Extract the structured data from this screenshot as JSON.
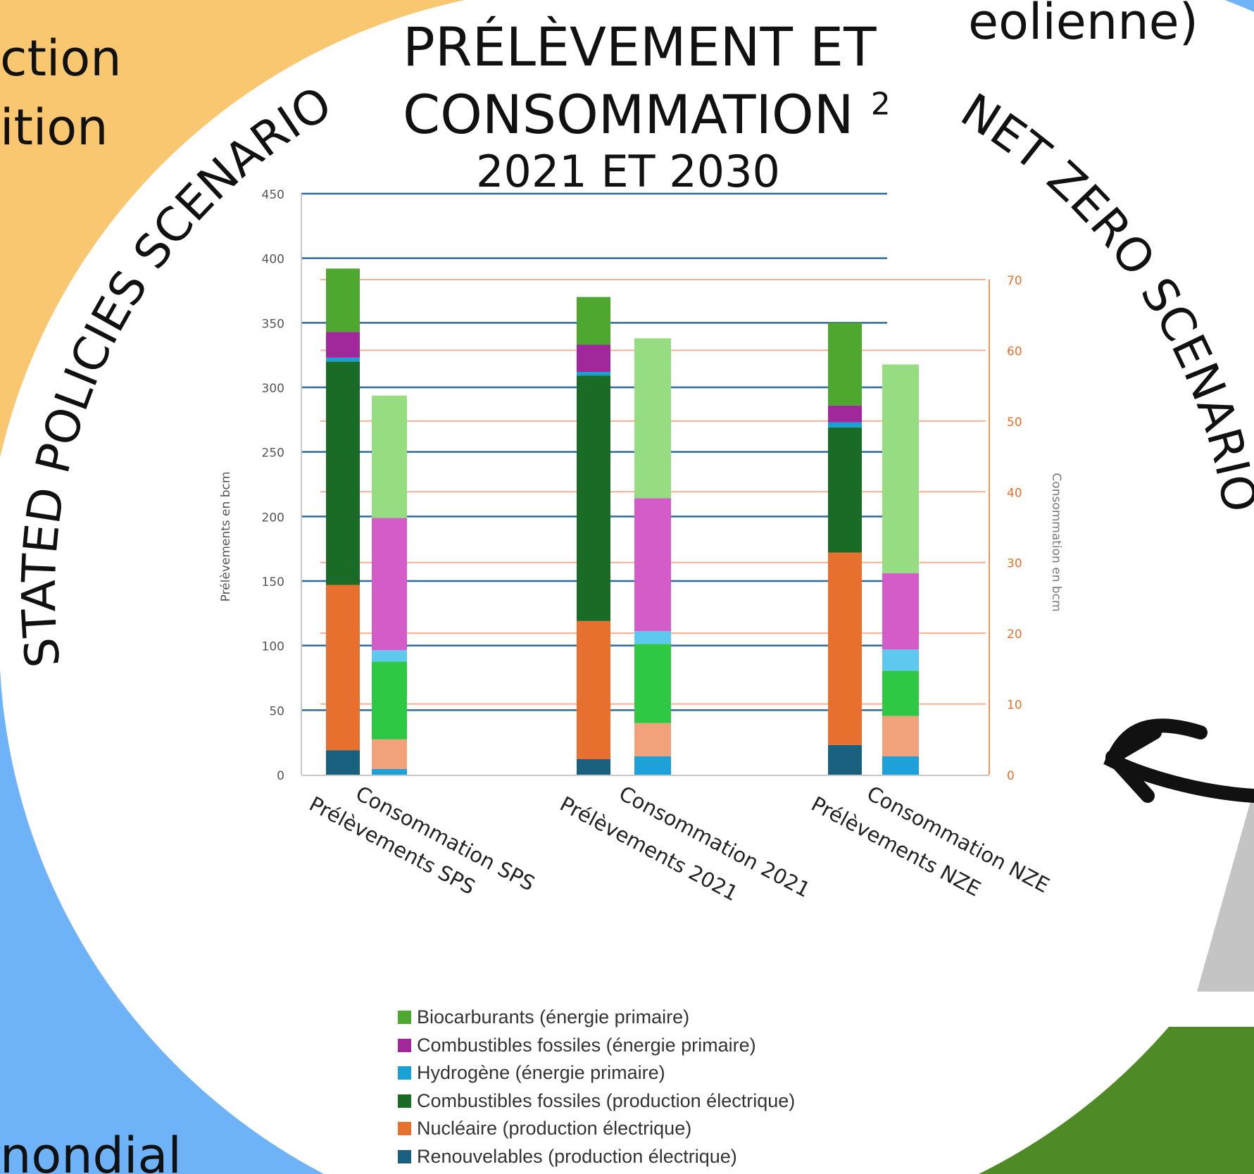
{
  "background": {
    "colors": {
      "orange": "#f9c76f",
      "blue": "#6eb2f7",
      "green": "#4e8a26",
      "gray": "#c4c4c4",
      "white": "#ffffff"
    },
    "fragments": {
      "top_right": "eolienne)",
      "left_1": "ction",
      "left_2": "ition",
      "bottom_left": "nondial"
    },
    "arc_labels": {
      "left": "STATED POLICIES SCENARIO",
      "right": "NET ZERO SCENARIO"
    }
  },
  "title": {
    "line1": "PRÉLÈVEMENT  ET",
    "line2": "CONSOMMATION",
    "superscript": "2",
    "line3": "2021 ET 2030"
  },
  "chart_data": {
    "type": "bar",
    "stacked": true,
    "categories": [
      "Prélèvements SPS",
      "Consommation SPS",
      "Prélèvements 2021",
      "Consommation 2021",
      "Prélèvements NZE",
      "Consommation NZE"
    ],
    "ylabel": "Prélèvements en bcm",
    "y2label": "Consommation en bcm",
    "ylim": [
      0,
      450
    ],
    "y2lim": [
      0,
      70
    ],
    "yticks": [
      "0",
      "50",
      "100",
      "150",
      "200",
      "250",
      "300",
      "350",
      "400",
      "450"
    ],
    "y2ticks": [
      "0",
      "10",
      "20",
      "30",
      "40",
      "50",
      "60",
      "70"
    ],
    "colors": {
      "biocarburants": "#4ea72e",
      "fossiles_primaire": "#a0289b",
      "hydrogene": "#1aa0d4",
      "fossiles_elec": "#1a6b25",
      "nucleaire": "#e8702f",
      "renouvelables": "#18607d",
      "cons_biocarburants": "#96dc80",
      "cons_fossiles_primaire": "#d35cc8",
      "cons_hydrogene": "#5dc9ef",
      "cons_fossiles_elec": "#2fc845",
      "cons_nucleaire": "#f2a27a",
      "cons_renouvelables": "#1ea0d8",
      "grid_left": "#2e6a9e",
      "grid_right": "#f4b093",
      "axis_right": "#e8702f"
    },
    "legend": [
      {
        "label": "Biocarburants (énergie primaire)",
        "color": "#4ea72e"
      },
      {
        "label": "Combustibles fossiles (énergie primaire)",
        "color": "#a0289b"
      },
      {
        "label": "Hydrogène (énergie primaire)",
        "color": "#1aa0d4"
      },
      {
        "label": "Combustibles fossiles (production électrique)",
        "color": "#1a6b25"
      },
      {
        "label": "Nucléaire (production électrique)",
        "color": "#e8702f"
      },
      {
        "label": "Renouvelables (production électrique)",
        "color": "#18607d"
      }
    ],
    "series": [
      {
        "name": "Renouvelables (production électrique)",
        "values": [
          19,
          0.8,
          12,
          2.6,
          23,
          2.6
        ],
        "colors": [
          "#18607d",
          "#1ea0d8",
          "#18607d",
          "#1ea0d8",
          "#18607d",
          "#1ea0d8"
        ]
      },
      {
        "name": "Nucléaire (production électrique)",
        "values": [
          128,
          4.2,
          107,
          4.7,
          149,
          5.7
        ],
        "colors": [
          "#e8702f",
          "#f2a27a",
          "#e8702f",
          "#f2a27a",
          "#e8702f",
          "#f2a27a"
        ]
      },
      {
        "name": "Combustibles fossiles (production électrique)",
        "values": [
          173,
          11.0,
          190,
          11.2,
          97,
          6.4
        ],
        "colors": [
          "#1a6b25",
          "#2fc845",
          "#1a6b25",
          "#2fc845",
          "#1a6b25",
          "#2fc845"
        ]
      },
      {
        "name": "Hydrogène (énergie primaire)",
        "values": [
          3,
          1.6,
          3,
          1.8,
          4,
          3.0
        ],
        "colors": [
          "#1aa0d4",
          "#5dc9ef",
          "#1aa0d4",
          "#5dc9ef",
          "#1aa0d4",
          "#5dc9ef"
        ]
      },
      {
        "name": "Combustibles fossiles (énergie primaire)",
        "values": [
          20,
          18.7,
          21,
          18.8,
          13,
          10.8
        ],
        "colors": [
          "#a0289b",
          "#d35cc8",
          "#a0289b",
          "#d35cc8",
          "#a0289b",
          "#d35cc8"
        ]
      },
      {
        "name": "Biocarburants (énergie primaire)",
        "values": [
          49,
          17.3,
          37,
          22.6,
          64,
          29.5
        ],
        "colors": [
          "#4ea72e",
          "#96dc80",
          "#4ea72e",
          "#96dc80",
          "#4ea72e",
          "#96dc80"
        ]
      }
    ],
    "axis_for_bar": [
      "left",
      "right",
      "left",
      "right",
      "left",
      "right"
    ]
  }
}
